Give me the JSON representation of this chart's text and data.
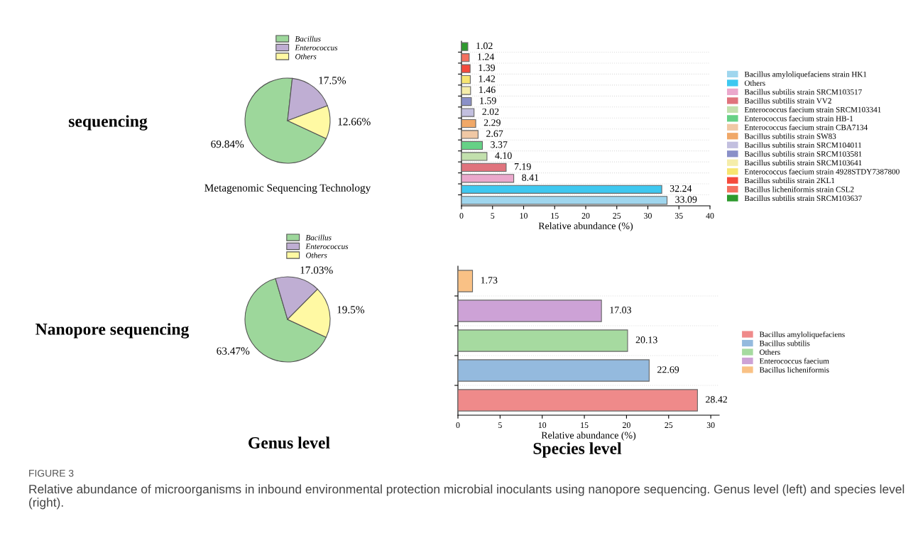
{
  "chart_data": [
    {
      "type": "pie",
      "categories": [
        "Bacillus",
        "Enterococcus",
        "Others"
      ],
      "values": [
        69.84,
        17.5,
        12.66
      ],
      "colors": [
        "#9dd79b",
        "#bfaed3",
        "#fff9a3"
      ],
      "value_labels": [
        "69.84%",
        "17.5%",
        "12.66%"
      ],
      "xlabel": "Metagenomic Sequencing Technology",
      "legend": "top right",
      "annotations": [
        "sequencing"
      ]
    },
    {
      "type": "bar",
      "orientation": "horizontal",
      "categories": [
        null,
        null,
        null,
        null,
        null,
        null,
        null,
        null,
        null,
        null,
        null,
        null,
        null,
        null,
        null
      ],
      "series": [
        {
          "name": "Bacillus subtilis strain SRCM103637",
          "color": "#2e9a2e",
          "values": [
            1.02,
            null,
            null,
            null,
            null,
            null,
            null,
            null,
            null,
            null,
            null,
            null,
            null,
            null,
            null
          ],
          "value_labels": [
            "1.02",
            null,
            null,
            null,
            null,
            null,
            null,
            null,
            null,
            null,
            null,
            null,
            null,
            null,
            null
          ]
        },
        {
          "name": "Bacillus licheniformis strain CSL2",
          "color": "#f57060",
          "values": [
            null,
            1.24,
            null,
            null,
            null,
            null,
            null,
            null,
            null,
            null,
            null,
            null,
            null,
            null,
            null
          ],
          "value_labels": [
            null,
            "1.24",
            null,
            null,
            null,
            null,
            null,
            null,
            null,
            null,
            null,
            null,
            null,
            null,
            null
          ]
        },
        {
          "name": "Bacillus subtilis strain 2KL1",
          "color": "#f54a3c",
          "values": [
            null,
            null,
            1.39,
            null,
            null,
            null,
            null,
            null,
            null,
            null,
            null,
            null,
            null,
            null,
            null
          ],
          "value_labels": [
            null,
            null,
            "1.39",
            null,
            null,
            null,
            null,
            null,
            null,
            null,
            null,
            null,
            null,
            null,
            null
          ]
        },
        {
          "name": "Enterococcus faecium strain 4928STDY7387800",
          "color": "#f7e571",
          "values": [
            null,
            null,
            null,
            1.42,
            null,
            null,
            null,
            null,
            null,
            null,
            null,
            null,
            null,
            null,
            null
          ],
          "value_labels": [
            null,
            null,
            null,
            "1.42",
            null,
            null,
            null,
            null,
            null,
            null,
            null,
            null,
            null,
            null,
            null
          ]
        },
        {
          "name": "Bacillus subtilis strain SRCM103641",
          "color": "#f5edaa",
          "values": [
            null,
            null,
            null,
            null,
            1.46,
            null,
            null,
            null,
            null,
            null,
            null,
            null,
            null,
            null,
            null
          ],
          "value_labels": [
            null,
            null,
            null,
            null,
            "1.46",
            null,
            null,
            null,
            null,
            null,
            null,
            null,
            null,
            null,
            null
          ]
        },
        {
          "name": "Bacillus subtilis strain SRCM103581",
          "color": "#8a90c8",
          "values": [
            null,
            null,
            null,
            null,
            null,
            1.59,
            null,
            null,
            null,
            null,
            null,
            null,
            null,
            null,
            null
          ],
          "value_labels": [
            null,
            null,
            null,
            null,
            null,
            "1.59",
            null,
            null,
            null,
            null,
            null,
            null,
            null,
            null,
            null
          ]
        },
        {
          "name": "Bacillus subtilis strain SRCM104011",
          "color": "#c2bfdf",
          "values": [
            null,
            null,
            null,
            null,
            null,
            null,
            2.02,
            null,
            null,
            null,
            null,
            null,
            null,
            null,
            null
          ],
          "value_labels": [
            null,
            null,
            null,
            null,
            null,
            null,
            "2.02",
            null,
            null,
            null,
            null,
            null,
            null,
            null,
            null
          ]
        },
        {
          "name": "Bacillus subtilis strain SW83",
          "color": "#f0a868",
          "values": [
            null,
            null,
            null,
            null,
            null,
            null,
            null,
            2.29,
            null,
            null,
            null,
            null,
            null,
            null,
            null
          ],
          "value_labels": [
            null,
            null,
            null,
            null,
            null,
            null,
            null,
            "2.29",
            null,
            null,
            null,
            null,
            null,
            null,
            null
          ]
        },
        {
          "name": "Enterococcus faecium strain CBA7134",
          "color": "#f0c8a5",
          "values": [
            null,
            null,
            null,
            null,
            null,
            null,
            null,
            null,
            2.67,
            null,
            null,
            null,
            null,
            null,
            null
          ],
          "value_labels": [
            null,
            null,
            null,
            null,
            null,
            null,
            null,
            null,
            "2.67",
            null,
            null,
            null,
            null,
            null,
            null
          ]
        },
        {
          "name": "Enterococcus faecium strain HB-1",
          "color": "#66d186",
          "values": [
            null,
            null,
            null,
            null,
            null,
            null,
            null,
            null,
            null,
            3.37,
            null,
            null,
            null,
            null,
            null
          ],
          "value_labels": [
            null,
            null,
            null,
            null,
            null,
            null,
            null,
            null,
            null,
            "3.37",
            null,
            null,
            null,
            null,
            null
          ]
        },
        {
          "name": "Enterococcus faecium strain SRCM103341",
          "color": "#c2e0ad",
          "values": [
            null,
            null,
            null,
            null,
            null,
            null,
            null,
            null,
            null,
            null,
            4.1,
            null,
            null,
            null,
            null
          ],
          "value_labels": [
            null,
            null,
            null,
            null,
            null,
            null,
            null,
            null,
            null,
            null,
            "4.10",
            null,
            null,
            null,
            null
          ]
        },
        {
          "name": "Bacillus subtilis strain VV2",
          "color": "#e0737d",
          "values": [
            null,
            null,
            null,
            null,
            null,
            null,
            null,
            null,
            null,
            null,
            null,
            7.19,
            null,
            null,
            null
          ],
          "value_labels": [
            null,
            null,
            null,
            null,
            null,
            null,
            null,
            null,
            null,
            null,
            null,
            "7.19",
            null,
            null,
            null
          ]
        },
        {
          "name": "Bacillus subtilis strain SRCM103517",
          "color": "#eba8cc",
          "values": [
            null,
            null,
            null,
            null,
            null,
            null,
            null,
            null,
            null,
            null,
            null,
            null,
            8.41,
            null,
            null
          ],
          "value_labels": [
            null,
            null,
            null,
            null,
            null,
            null,
            null,
            null,
            null,
            null,
            null,
            null,
            "8.41",
            null,
            null
          ]
        },
        {
          "name": "Others",
          "color": "#3ec8f0",
          "values": [
            null,
            null,
            null,
            null,
            null,
            null,
            null,
            null,
            null,
            null,
            null,
            null,
            null,
            32.24,
            null
          ],
          "value_labels": [
            null,
            null,
            null,
            null,
            null,
            null,
            null,
            null,
            null,
            null,
            null,
            null,
            null,
            "32.24",
            null
          ]
        },
        {
          "name": "Bacillus amyloliquefaciens strain HK1",
          "color": "#9fd6ee",
          "values": [
            null,
            null,
            null,
            null,
            null,
            null,
            null,
            null,
            null,
            null,
            null,
            null,
            null,
            null,
            33.09
          ],
          "value_labels": [
            null,
            null,
            null,
            null,
            null,
            null,
            null,
            null,
            null,
            null,
            null,
            null,
            null,
            null,
            "33.09"
          ]
        }
      ],
      "xlabel": "Relative abundance (%)",
      "xlim": [
        0,
        40
      ],
      "xticks": [
        0,
        5,
        10,
        15,
        20,
        25,
        30,
        35,
        40
      ],
      "tick_labels": "x",
      "grid": "y",
      "legend": "right"
    },
    {
      "type": "pie",
      "categories": [
        "Bacillus",
        "Enterococcus",
        "Others"
      ],
      "values": [
        63.47,
        17.03,
        19.5
      ],
      "colors": [
        "#9dd79b",
        "#bfaed3",
        "#fff9a3"
      ],
      "value_labels": [
        "63.47%",
        "17.03%",
        "19.5%"
      ],
      "legend": "top right",
      "annotations": [
        "Nanopore sequencing",
        "Genus level"
      ]
    },
    {
      "type": "bar",
      "orientation": "horizontal",
      "categories": [
        null,
        null,
        null,
        null,
        null
      ],
      "series": [
        {
          "name": "Bacillus licheniformis",
          "color": "#f9c185",
          "values": [
            1.73,
            null,
            null,
            null,
            null
          ],
          "value_labels": [
            "1.73",
            null,
            null,
            null,
            null
          ]
        },
        {
          "name": "Enterococcus faecium",
          "color": "#cda2d6",
          "values": [
            null,
            17.03,
            null,
            null,
            null
          ],
          "value_labels": [
            null,
            "17.03",
            null,
            null,
            null
          ]
        },
        {
          "name": "Others",
          "color": "#a6daa0",
          "values": [
            null,
            null,
            20.13,
            null,
            null
          ],
          "value_labels": [
            null,
            null,
            "20.13",
            null,
            null
          ]
        },
        {
          "name": "Bacillus subtilis",
          "color": "#94bade",
          "values": [
            null,
            null,
            null,
            22.69,
            null
          ],
          "value_labels": [
            null,
            null,
            null,
            "22.69",
            null
          ]
        },
        {
          "name": "Bacillus amyloliquefaciens",
          "color": "#ef8a8a",
          "values": [
            null,
            null,
            null,
            null,
            28.42
          ],
          "value_labels": [
            null,
            null,
            null,
            null,
            "28.42"
          ]
        }
      ],
      "xlabel": "Relative abundance (%)",
      "xlim": [
        0,
        31
      ],
      "xticks": [
        0,
        5,
        10,
        15,
        20,
        25,
        30
      ],
      "tick_labels": "x",
      "grid": "y",
      "legend": "right",
      "annotations": [
        "Species level",
        "FIGURE 3",
        "Relative abundance of microorganisms in inbound environmental protection microbial inoculants using nanopore sequencing. Genus level (left) and species level (right)."
      ]
    }
  ]
}
